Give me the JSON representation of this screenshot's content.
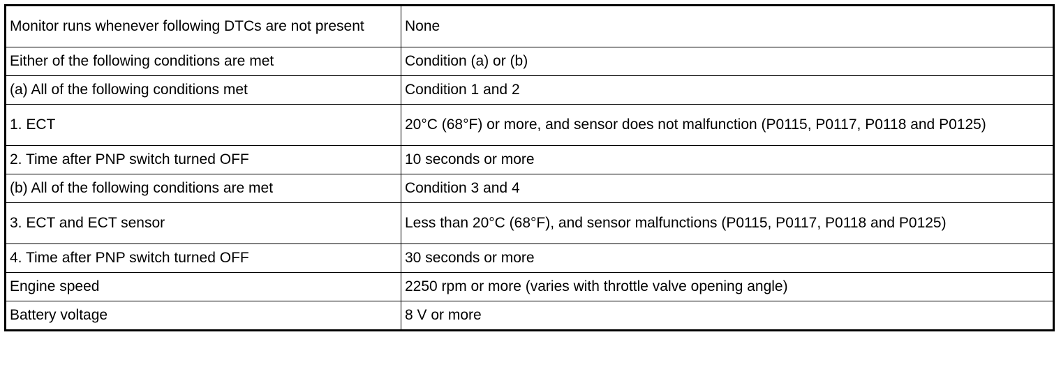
{
  "table": {
    "rows": [
      {
        "condition": "Monitor runs whenever following DTCs are not present",
        "value": "None",
        "lines": 2
      },
      {
        "condition": "Either of the following conditions are met",
        "value": "Condition (a) or (b)",
        "lines": 1
      },
      {
        "condition": "(a) All of the following conditions met",
        "value": "Condition 1 and 2",
        "lines": 1
      },
      {
        "condition": "1. ECT",
        "value": "20°C (68°F) or more, and sensor does not malfunction (P0115, P0117, P0118 and P0125)",
        "lines": 2
      },
      {
        "condition": "2. Time after PNP switch turned OFF",
        "value": "10 seconds or more",
        "lines": 1
      },
      {
        "condition": "(b) All of the following conditions are met",
        "value": "Condition 3 and 4",
        "lines": 1
      },
      {
        "condition": "3. ECT and ECT sensor",
        "value": "Less than 20°C (68°F), and sensor malfunctions (P0115, P0117, P0118 and P0125)",
        "lines": 2
      },
      {
        "condition": "4. Time after PNP switch turned OFF",
        "value": "30 seconds or more",
        "lines": 1
      },
      {
        "condition": "Engine speed",
        "value": "2250 rpm or more (varies with throttle valve opening angle)",
        "lines": 1
      },
      {
        "condition": "Battery voltage",
        "value": "8 V or more",
        "lines": 1
      }
    ]
  }
}
